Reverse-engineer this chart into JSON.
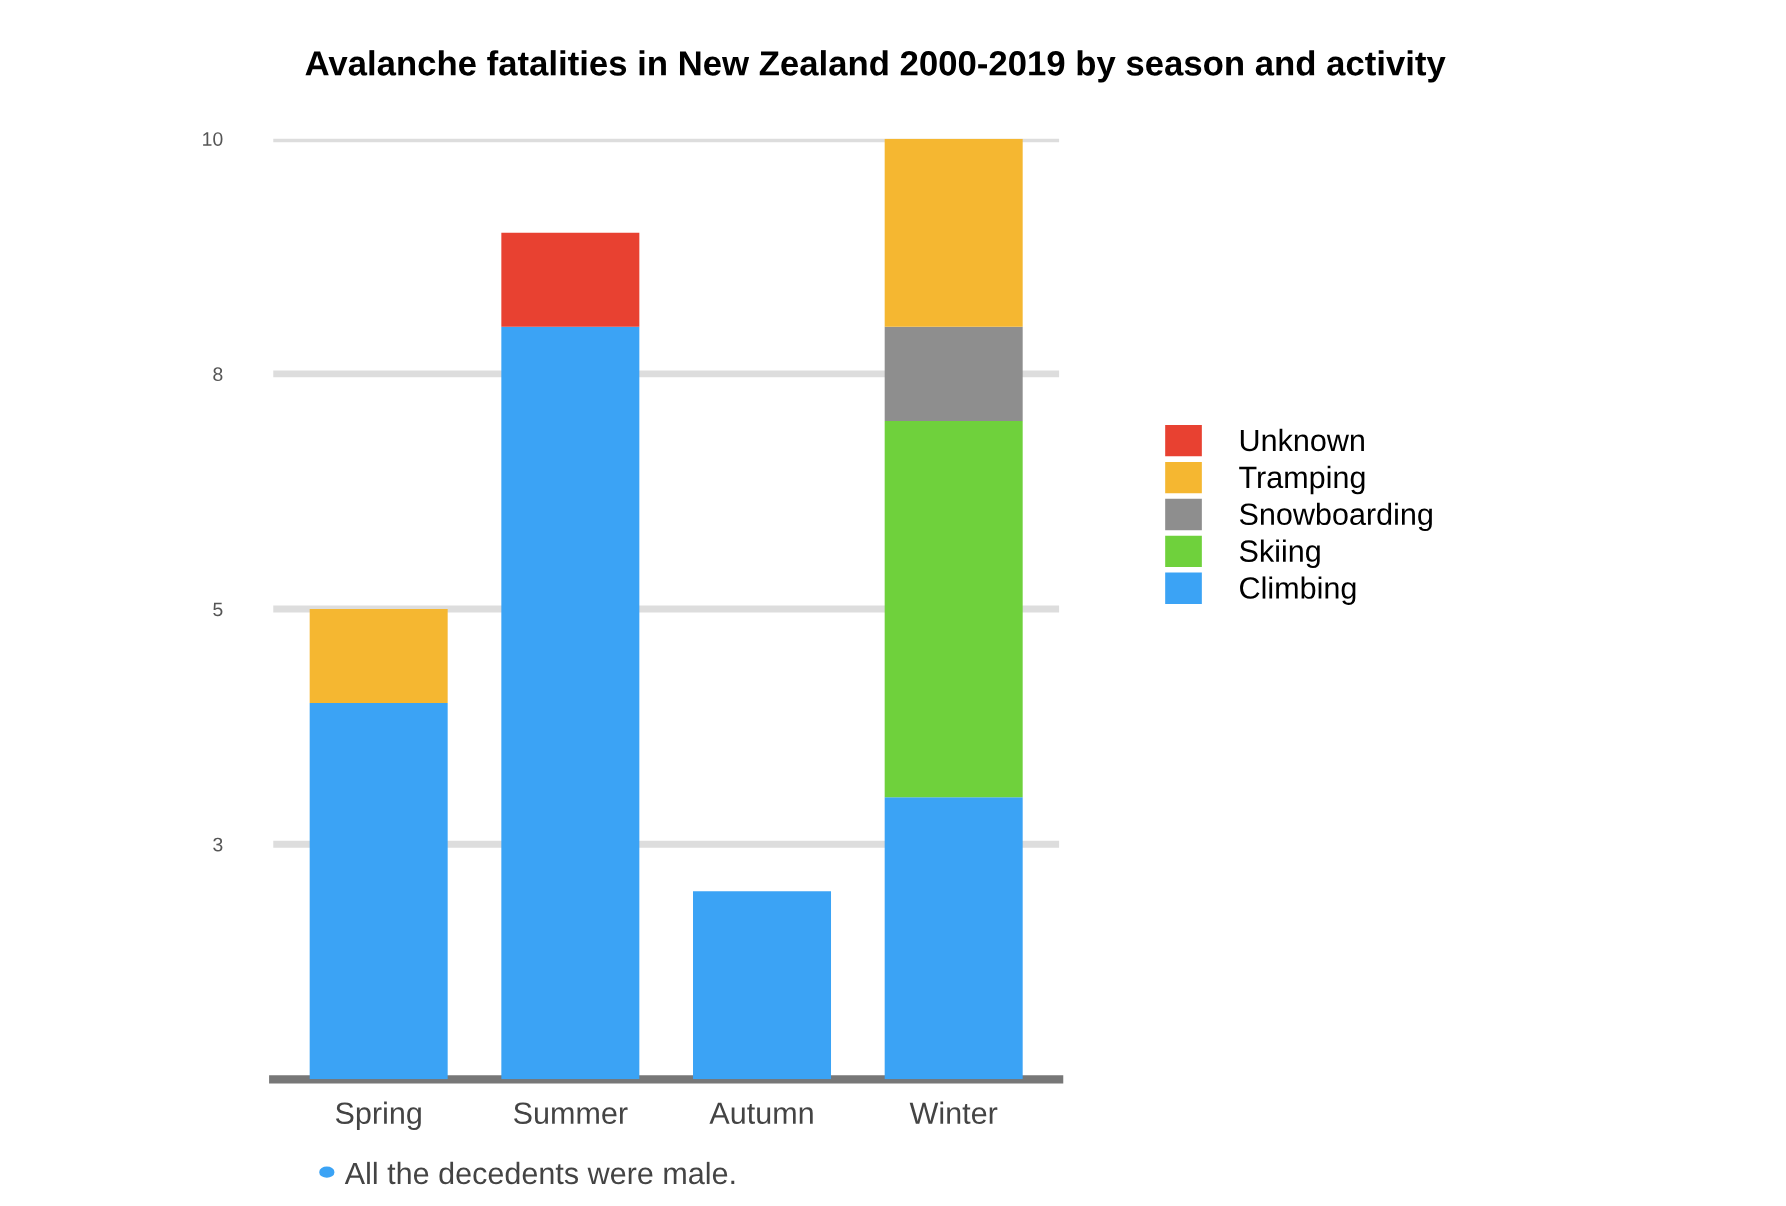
{
  "chart_data": {
    "type": "bar",
    "title": "Avalanche fatalities in New Zealand 2000-2019 by season and activity",
    "categories": [
      "Spring",
      "Summer",
      "Autumn",
      "Winter"
    ],
    "stacked": true,
    "series": [
      {
        "name": "Climbing",
        "color": "#3ba3f5",
        "values": [
          4,
          8,
          2,
          3
        ]
      },
      {
        "name": "Skiing",
        "color": "#6fd13c",
        "values": [
          0,
          0,
          0,
          4
        ]
      },
      {
        "name": "Snowboarding",
        "color": "#8e8e8e",
        "values": [
          0,
          0,
          0,
          1
        ]
      },
      {
        "name": "Tramping",
        "color": "#f5b731",
        "values": [
          1,
          0,
          0,
          2
        ]
      },
      {
        "name": "Unknown",
        "color": "#e84131",
        "values": [
          0,
          1,
          0,
          0
        ]
      }
    ],
    "ylim": [
      0,
      10
    ],
    "yticks": [
      {
        "value": 2.5,
        "label": "3"
      },
      {
        "value": 5,
        "label": "5"
      },
      {
        "value": 7.5,
        "label": "8"
      },
      {
        "value": 10,
        "label": "10"
      }
    ],
    "grid": "y",
    "legend": "right",
    "annotations": [
      "All the decedents were male."
    ]
  }
}
